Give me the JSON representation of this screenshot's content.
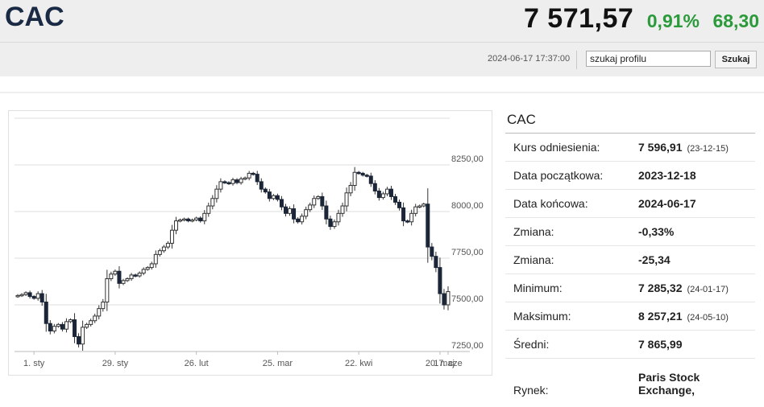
{
  "header": {
    "title": "CAC",
    "price": "7 571,57",
    "change_pct": "0,91%",
    "change_abs": "68,30",
    "timestamp": "2024-06-17 17:37:00",
    "search_value": "szukaj profilu",
    "search_button": "Szukaj"
  },
  "colors": {
    "positive": "#2a9a3a",
    "title": "#1a2a44",
    "header_bg": "#eeeeee",
    "candle_down": "#1b2638"
  },
  "panel": {
    "title": "CAC",
    "rows": [
      {
        "label": "Kurs odniesienia:",
        "value": "7 596,91",
        "extra": "(23-12-15)"
      },
      {
        "label": "Data początkowa:",
        "value": "2023-12-18",
        "extra": ""
      },
      {
        "label": "Data końcowa:",
        "value": "2024-06-17",
        "extra": ""
      },
      {
        "label": "Zmiana:",
        "value": "-0,33%",
        "extra": ""
      },
      {
        "label": "Zmiana:",
        "value": "-25,34",
        "extra": ""
      },
      {
        "label": "Minimum:",
        "value": "7 285,32",
        "extra": "(24-01-17)"
      },
      {
        "label": "Maksimum:",
        "value": "8 257,21",
        "extra": "(24-05-10)"
      },
      {
        "label": "Średni:",
        "value": "7 865,99",
        "extra": ""
      }
    ],
    "last_row": {
      "label": "Rynek:",
      "value": "Paris Stock Exchange,"
    }
  },
  "chart_data": {
    "type": "candlestick",
    "xlabels": [
      "1. sty",
      "29. sty",
      "26. lut",
      "25. mar",
      "22. kwi",
      "20. maj",
      "17. cze"
    ],
    "ylabels": [
      "8250,00",
      "8000,00",
      "7750,00",
      "7500,00",
      "7250,00"
    ],
    "yticks": [
      8250,
      8000,
      7750,
      7500,
      7250
    ],
    "ylim": [
      7250,
      8500
    ],
    "grid": true,
    "closes": [
      7550,
      7555,
      7565,
      7545,
      7535,
      7560,
      7515,
      7400,
      7360,
      7385,
      7395,
      7370,
      7410,
      7420,
      7330,
      7290,
      7380,
      7395,
      7415,
      7440,
      7480,
      7515,
      7640,
      7665,
      7680,
      7615,
      7630,
      7640,
      7660,
      7655,
      7670,
      7690,
      7700,
      7720,
      7770,
      7790,
      7810,
      7830,
      7900,
      7950,
      7955,
      7960,
      7950,
      7955,
      7965,
      7950,
      7990,
      8030,
      8070,
      8120,
      8160,
      8155,
      8150,
      8170,
      8155,
      8175,
      8180,
      8205,
      8200,
      8160,
      8120,
      8105,
      8070,
      8085,
      8065,
      8025,
      7990,
      8015,
      7960,
      7945,
      7975,
      8010,
      8035,
      8070,
      8080,
      8030,
      7960,
      7920,
      7945,
      7990,
      8030,
      8100,
      8140,
      8210,
      8205,
      8195,
      8190,
      8150,
      8110,
      8075,
      8095,
      8120,
      8080,
      8050,
      8020,
      7950,
      7945,
      7990,
      8025,
      8030,
      8040,
      7810,
      7760,
      7700,
      7560,
      7500,
      7571
    ]
  }
}
